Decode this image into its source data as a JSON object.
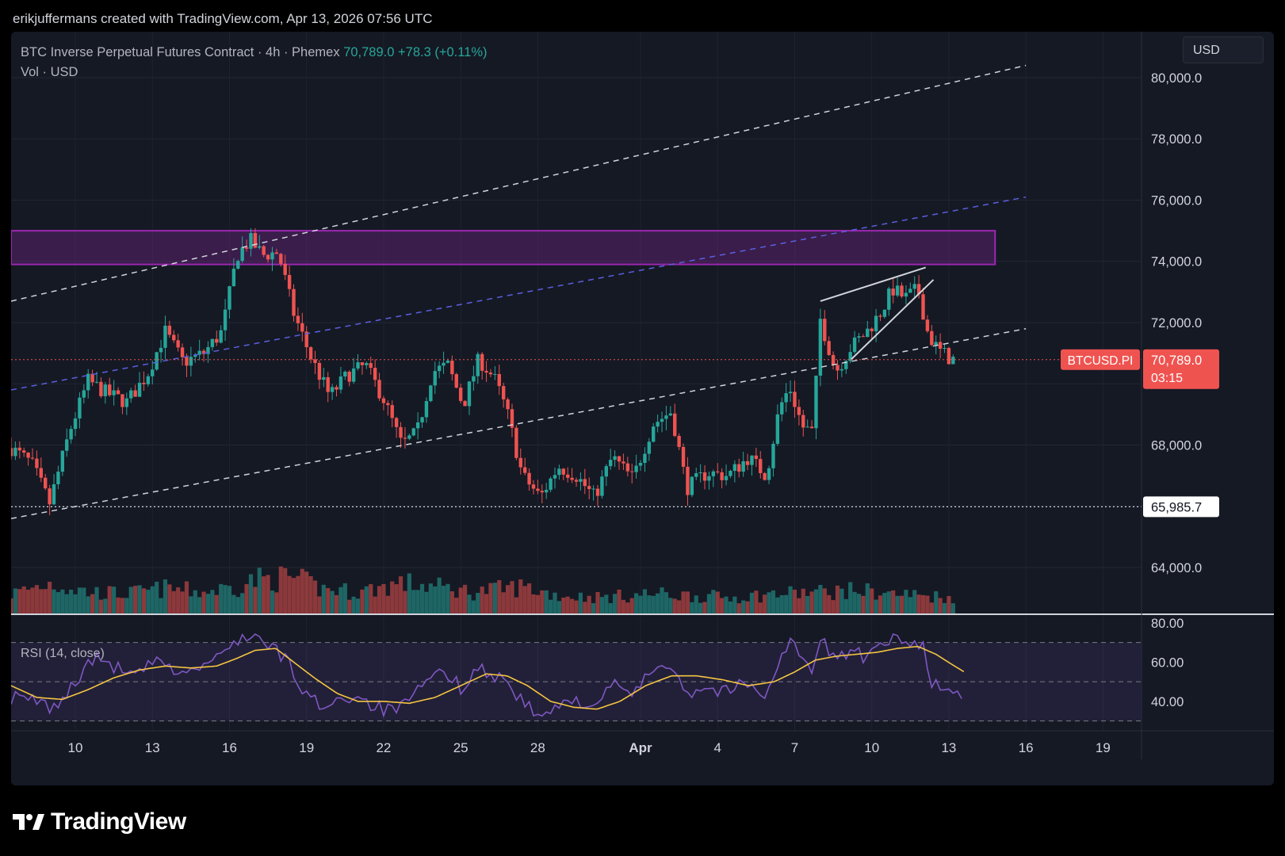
{
  "credit": "erikjuffermans created with TradingView.com, Apr 13, 2026 07:56 UTC",
  "legend": {
    "symbol_desc": "BTC Inverse Perpetual Futures Contract · 4h · Phemex",
    "last": "70,789.0",
    "change": "+78.3 (+0.11%)",
    "vol": "Vol · USD"
  },
  "currency_button": "USD",
  "rsi_label": "RSI (14, close)",
  "brand": "TradingView",
  "colors": {
    "up": "#26a69a",
    "down": "#ef5350",
    "zone": "#9c27b0",
    "rsi": "#7e57c2",
    "rsi_ma": "#f5c542",
    "dashed": "#d1d4dc",
    "mid_channel": "#5b5fe0"
  },
  "chart_data": [
    {
      "type": "candlestick",
      "symbol": "BTCUSD.PI",
      "timeframe": "4h",
      "last_price": 70789.0,
      "last_price_label": "70,789.0",
      "countdown": "03:15",
      "ylim": [
        62500,
        81500
      ],
      "y_ticks": [
        64000,
        66000,
        68000,
        70000,
        72000,
        74000,
        76000,
        78000,
        80000
      ],
      "y_tick_labels": [
        "64,000.0",
        "",
        "68,000.0",
        "",
        "72,000.0",
        "74,000.0",
        "76,000.0",
        "78,000.0",
        "80,000.0"
      ],
      "x_labels": [
        "10",
        "13",
        "16",
        "19",
        "22",
        "25",
        "28",
        "Apr",
        "4",
        "7",
        "10",
        "13",
        "16",
        "19"
      ],
      "x_label_days": [
        10,
        13,
        16,
        19,
        22,
        25,
        28,
        32,
        35,
        38,
        41,
        44,
        47,
        50
      ],
      "horizontal_level": {
        "value": 65985.7,
        "label": "65,985.7"
      },
      "resistance_zone": {
        "low": 73900,
        "high": 75000
      },
      "close_path": [
        [
          7.5,
          67900
        ],
        [
          8.3,
          67400
        ],
        [
          9.0,
          66100
        ],
        [
          9.8,
          68500
        ],
        [
          10.5,
          70100
        ],
        [
          11.2,
          69700
        ],
        [
          12.0,
          69400
        ],
        [
          12.8,
          70300
        ],
        [
          13.5,
          71700
        ],
        [
          14.2,
          70700
        ],
        [
          15.0,
          71000
        ],
        [
          15.7,
          71700
        ],
        [
          16.3,
          74200
        ],
        [
          16.8,
          74700
        ],
        [
          17.3,
          74200
        ],
        [
          17.9,
          74300
        ],
        [
          18.5,
          72300
        ],
        [
          19.2,
          70800
        ],
        [
          19.9,
          69600
        ],
        [
          20.6,
          70300
        ],
        [
          21.3,
          70600
        ],
        [
          22.0,
          69500
        ],
        [
          22.7,
          68000
        ],
        [
          23.3,
          68400
        ],
        [
          23.9,
          70400
        ],
        [
          24.5,
          70600
        ],
        [
          25.1,
          69300
        ],
        [
          25.7,
          70800
        ],
        [
          26.3,
          70200
        ],
        [
          26.8,
          69100
        ],
        [
          27.4,
          67000
        ],
        [
          28.1,
          66300
        ],
        [
          28.8,
          67300
        ],
        [
          29.5,
          67000
        ],
        [
          30.2,
          66300
        ],
        [
          30.9,
          67600
        ],
        [
          31.7,
          66900
        ],
        [
          32.5,
          68700
        ],
        [
          33.2,
          69100
        ],
        [
          33.8,
          66600
        ],
        [
          34.6,
          67100
        ],
        [
          35.4,
          67000
        ],
        [
          36.2,
          67600
        ],
        [
          36.9,
          67000
        ],
        [
          37.4,
          69200
        ],
        [
          37.8,
          69900
        ],
        [
          38.3,
          68600
        ],
        [
          38.7,
          68400
        ],
        [
          39.0,
          72100
        ],
        [
          39.6,
          70400
        ],
        [
          40.2,
          71200
        ],
        [
          40.8,
          71700
        ],
        [
          41.4,
          72400
        ],
        [
          41.8,
          73100
        ],
        [
          42.3,
          72800
        ],
        [
          42.8,
          73100
        ],
        [
          43.2,
          71600
        ],
        [
          43.6,
          71100
        ],
        [
          44.1,
          70800
        ],
        [
          44.2,
          70789
        ]
      ],
      "volume_profile": [
        [
          7.5,
          0.55
        ],
        [
          9.0,
          0.85
        ],
        [
          10.5,
          0.6
        ],
        [
          12.0,
          0.55
        ],
        [
          13.5,
          0.7
        ],
        [
          15.0,
          0.6
        ],
        [
          16.3,
          0.75
        ],
        [
          17.0,
          0.95
        ],
        [
          18.5,
          1.0
        ],
        [
          19.5,
          0.7
        ],
        [
          21.0,
          0.6
        ],
        [
          22.7,
          0.85
        ],
        [
          24.0,
          0.75
        ],
        [
          25.5,
          0.6
        ],
        [
          27.4,
          0.75
        ],
        [
          28.8,
          0.5
        ],
        [
          30.5,
          0.45
        ],
        [
          32.5,
          0.55
        ],
        [
          34.0,
          0.5
        ],
        [
          35.5,
          0.45
        ],
        [
          37.4,
          0.55
        ],
        [
          39.0,
          0.6
        ],
        [
          40.5,
          0.65
        ],
        [
          41.8,
          0.55
        ],
        [
          43.2,
          0.5
        ],
        [
          44.2,
          0.45
        ]
      ],
      "channel_lines": [
        {
          "style": "dashed",
          "color": "#d1d4dc",
          "from": [
            7.5,
            72700
          ],
          "to": [
            47.0,
            80400
          ]
        },
        {
          "style": "dashed",
          "color": "#5b5fe0",
          "from": [
            7.5,
            69800
          ],
          "to": [
            47.0,
            76100
          ]
        },
        {
          "style": "dashed",
          "color": "#d1d4dc",
          "from": [
            7.5,
            65600
          ],
          "to": [
            47.0,
            71800
          ]
        }
      ],
      "wedge_lines": [
        {
          "style": "solid",
          "color": "#d1d4dc",
          "from": [
            39.0,
            72700
          ],
          "to": [
            43.1,
            73800
          ]
        },
        {
          "style": "solid",
          "color": "#d1d4dc",
          "from": [
            40.2,
            70800
          ],
          "to": [
            43.4,
            73400
          ]
        }
      ]
    },
    {
      "type": "line",
      "title": "RSI (14, close)",
      "ylim": [
        25,
        84
      ],
      "y_ticks": [
        40,
        60,
        80
      ],
      "y_tick_labels": [
        "40.00",
        "60.00",
        "80.00"
      ],
      "bands": [
        30,
        50,
        70
      ],
      "rsi_path": [
        [
          7.5,
          42
        ],
        [
          8.5,
          40
        ],
        [
          9.2,
          36
        ],
        [
          10.0,
          50
        ],
        [
          10.7,
          62
        ],
        [
          11.5,
          58
        ],
        [
          12.3,
          52
        ],
        [
          13.0,
          60
        ],
        [
          13.8,
          56
        ],
        [
          14.5,
          55
        ],
        [
          15.2,
          60
        ],
        [
          15.8,
          64
        ],
        [
          16.3,
          72
        ],
        [
          16.9,
          74
        ],
        [
          17.5,
          68
        ],
        [
          18.2,
          62
        ],
        [
          18.8,
          46
        ],
        [
          19.5,
          38
        ],
        [
          20.2,
          41
        ],
        [
          21.0,
          43
        ],
        [
          21.7,
          37
        ],
        [
          22.3,
          35
        ],
        [
          23.0,
          39
        ],
        [
          23.7,
          51
        ],
        [
          24.4,
          55
        ],
        [
          25.0,
          47
        ],
        [
          25.6,
          57
        ],
        [
          26.2,
          54
        ],
        [
          26.8,
          50
        ],
        [
          27.4,
          40
        ],
        [
          28.0,
          32
        ],
        [
          28.7,
          36
        ],
        [
          29.5,
          41
        ],
        [
          30.2,
          38
        ],
        [
          31.0,
          48
        ],
        [
          31.8,
          44
        ],
        [
          32.5,
          57
        ],
        [
          33.2,
          60
        ],
        [
          33.8,
          44
        ],
        [
          34.5,
          47
        ],
        [
          35.3,
          45
        ],
        [
          36.0,
          49
        ],
        [
          36.8,
          44
        ],
        [
          37.4,
          59
        ],
        [
          37.8,
          72
        ],
        [
          38.3,
          62
        ],
        [
          38.7,
          52
        ],
        [
          39.0,
          72
        ],
        [
          39.6,
          62
        ],
        [
          40.2,
          66
        ],
        [
          40.8,
          62
        ],
        [
          41.4,
          68
        ],
        [
          41.9,
          72
        ],
        [
          42.5,
          68
        ],
        [
          43.0,
          71
        ],
        [
          43.3,
          50
        ],
        [
          43.7,
          47
        ],
        [
          44.2,
          43
        ],
        [
          44.6,
          44
        ]
      ],
      "rsi_ma_path": [
        [
          7.5,
          48
        ],
        [
          8.5,
          42
        ],
        [
          9.5,
          41
        ],
        [
          10.5,
          46
        ],
        [
          11.5,
          52
        ],
        [
          12.5,
          56
        ],
        [
          13.5,
          58
        ],
        [
          14.5,
          57
        ],
        [
          15.5,
          58
        ],
        [
          16.3,
          62
        ],
        [
          17.0,
          66
        ],
        [
          17.8,
          67
        ],
        [
          18.5,
          60
        ],
        [
          19.3,
          52
        ],
        [
          20.2,
          44
        ],
        [
          21.0,
          40
        ],
        [
          22.0,
          40
        ],
        [
          23.0,
          39
        ],
        [
          24.0,
          42
        ],
        [
          25.0,
          48
        ],
        [
          26.0,
          54
        ],
        [
          26.8,
          53
        ],
        [
          27.6,
          48
        ],
        [
          28.5,
          40
        ],
        [
          29.4,
          37
        ],
        [
          30.3,
          36
        ],
        [
          31.2,
          40
        ],
        [
          32.2,
          48
        ],
        [
          33.2,
          53
        ],
        [
          34.2,
          53
        ],
        [
          35.2,
          51
        ],
        [
          36.2,
          48
        ],
        [
          37.2,
          50
        ],
        [
          38.0,
          55
        ],
        [
          38.8,
          61
        ],
        [
          39.6,
          63
        ],
        [
          40.4,
          64
        ],
        [
          41.2,
          65
        ],
        [
          42.0,
          67
        ],
        [
          42.8,
          68
        ],
        [
          43.5,
          64
        ],
        [
          44.1,
          59
        ],
        [
          44.6,
          55
        ]
      ]
    }
  ]
}
